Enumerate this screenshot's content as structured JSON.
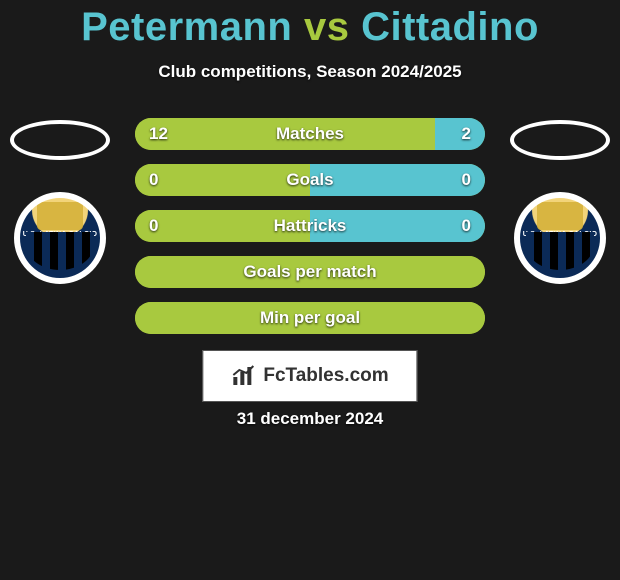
{
  "header": {
    "player1": "Petermann",
    "vs": "vs",
    "player2": "Cittadino",
    "title_color_p1": "#58c4d0",
    "title_color_vs": "#a8c93f",
    "title_color_p2": "#58c4d0",
    "title_fontsize": 40,
    "subtitle": "Club competitions, Season 2024/2025",
    "subtitle_color": "#ffffff"
  },
  "background_color": "#1a1a1a",
  "bar_defaults": {
    "color_left": "#a8c93f",
    "color_right": "#58c4d0",
    "track_color": "#a8c93f",
    "height": 32,
    "border_radius": 16,
    "label_color": "#ffffff",
    "label_fontsize": 17
  },
  "bars": [
    {
      "label": "Matches",
      "left_val": "12",
      "right_val": "2",
      "left_pct": 85.7,
      "right_pct": 14.3
    },
    {
      "label": "Goals",
      "left_val": "0",
      "right_val": "0",
      "left_pct": 50,
      "right_pct": 50
    },
    {
      "label": "Hattricks",
      "left_val": "0",
      "right_val": "0",
      "left_pct": 50,
      "right_pct": 50
    },
    {
      "label": "Goals per match",
      "left_val": "",
      "right_val": "",
      "left_pct": 100,
      "right_pct": 0
    },
    {
      "label": "Min per goal",
      "left_val": "",
      "right_val": "",
      "left_pct": 100,
      "right_pct": 0
    }
  ],
  "club_badge": {
    "text": "U.S. LATINA CALCIO",
    "ring_color": "#ffffff",
    "top_color": "#d4af37",
    "bottom_stripe_a": "#0b2a57",
    "bottom_stripe_b": "#000000"
  },
  "brand": {
    "text": "FcTables.com",
    "icon_color": "#323232",
    "box_bg": "#ffffff"
  },
  "date": "31 december 2024"
}
